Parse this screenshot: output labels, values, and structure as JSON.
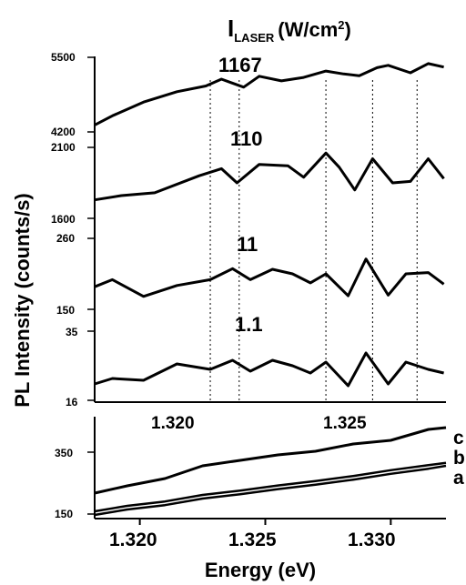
{
  "chart_data": {
    "type": "line",
    "title": "",
    "xlabel": "Energy (eV)",
    "ylabel": "PL Intensity (counts/s)",
    "laser_header": {
      "main": "I",
      "subscript": "LASER",
      "units_prefix": "(W/cm",
      "units_sup": "2",
      "units_suffix": ")"
    },
    "x_inner_ticks": [
      "1.320",
      "1.325"
    ],
    "vertical_reference_energies": [
      1.321,
      1.3223,
      1.3262,
      1.3283,
      1.3303
    ],
    "panels": [
      {
        "name": "1167",
        "ylim": [
          4200,
          5500
        ],
        "ytick_labels": [
          "5500",
          "4200"
        ],
        "x": [
          1.3158,
          1.3166,
          1.318,
          1.3195,
          1.3208,
          1.3215,
          1.3225,
          1.3232,
          1.3242,
          1.3252,
          1.3262,
          1.327,
          1.3277,
          1.3285,
          1.329,
          1.33,
          1.3308,
          1.3315
        ],
        "y": [
          4320,
          4480,
          4720,
          4900,
          5000,
          5120,
          4980,
          5170,
          5090,
          5150,
          5260,
          5210,
          5180,
          5320,
          5360,
          5230,
          5390,
          5330
        ]
      },
      {
        "name": "110",
        "ylim": [
          1600,
          2100
        ],
        "ytick_labels": [
          "2100",
          "1600"
        ],
        "x": [
          1.3158,
          1.317,
          1.3185,
          1.3205,
          1.3215,
          1.3222,
          1.3232,
          1.3245,
          1.3252,
          1.3262,
          1.3268,
          1.3275,
          1.3283,
          1.3292,
          1.33,
          1.3308,
          1.3315
        ],
        "y": [
          1730,
          1760,
          1780,
          1900,
          1950,
          1850,
          1980,
          1970,
          1890,
          2060,
          1960,
          1800,
          2020,
          1850,
          1860,
          2020,
          1880
        ]
      },
      {
        "name": "11",
        "ylim": [
          150,
          260
        ],
        "ytick_labels": [
          "260",
          "150"
        ],
        "x": [
          1.3158,
          1.3166,
          1.318,
          1.3195,
          1.321,
          1.322,
          1.3228,
          1.3238,
          1.3247,
          1.3255,
          1.3262,
          1.3272,
          1.328,
          1.329,
          1.3298,
          1.3308,
          1.3315
        ],
        "y": [
          185,
          196,
          170,
          187,
          196,
          213,
          196,
          212,
          205,
          191,
          205,
          171,
          228,
          172,
          205,
          207,
          189
        ]
      },
      {
        "name": "1.1",
        "ylim": [
          16,
          35
        ],
        "ytick_labels": [
          "35",
          "16"
        ],
        "x": [
          1.3158,
          1.3166,
          1.318,
          1.3195,
          1.321,
          1.322,
          1.3228,
          1.3238,
          1.3247,
          1.3255,
          1.3262,
          1.3272,
          1.328,
          1.329,
          1.3298,
          1.3308,
          1.3315
        ],
        "y": [
          20.5,
          22.0,
          21.5,
          26.0,
          24.5,
          27.0,
          24.0,
          27.0,
          25.5,
          23.5,
          26.5,
          20.0,
          29.0,
          20.5,
          26.5,
          24.5,
          23.5
        ]
      }
    ],
    "bottom_panel": {
      "xlim": [
        1.3182,
        1.3322
      ],
      "xticks": [
        1.32,
        1.325,
        1.33
      ],
      "xtick_labels": [
        "1.320",
        "1.325",
        "1.330"
      ],
      "ylim": [
        150,
        420
      ],
      "ytick_labels": [
        "350",
        "150"
      ],
      "series": [
        {
          "name": "c",
          "x": [
            1.3182,
            1.3195,
            1.321,
            1.3225,
            1.324,
            1.3255,
            1.327,
            1.3285,
            1.33,
            1.3315,
            1.3322
          ],
          "y": [
            215,
            235,
            255,
            290,
            305,
            320,
            330,
            350,
            360,
            390,
            395
          ]
        },
        {
          "name": "b",
          "x": [
            1.3182,
            1.3195,
            1.321,
            1.3225,
            1.324,
            1.3255,
            1.327,
            1.3285,
            1.33,
            1.3315,
            1.3322
          ],
          "y": [
            165,
            180,
            192,
            210,
            222,
            236,
            248,
            262,
            278,
            292,
            298
          ]
        },
        {
          "name": "a",
          "x": [
            1.3182,
            1.3195,
            1.321,
            1.3225,
            1.324,
            1.3255,
            1.327,
            1.3285,
            1.33,
            1.3315,
            1.3322
          ],
          "y": [
            155,
            170,
            182,
            200,
            212,
            226,
            238,
            252,
            268,
            282,
            290
          ]
        }
      ]
    }
  }
}
